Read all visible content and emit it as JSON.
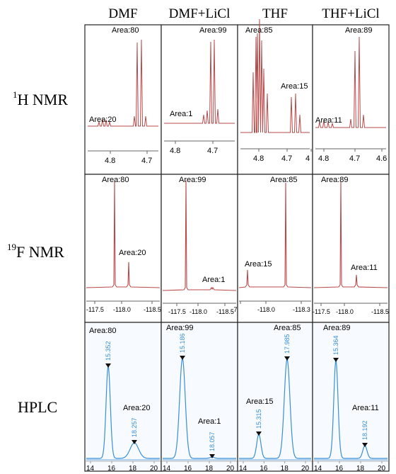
{
  "columns": [
    "DMF",
    "DMF+LiCl",
    "THF",
    "THF+LiCl"
  ],
  "rows": [
    {
      "id": "h1",
      "sup": "1",
      "label": "H NMR"
    },
    {
      "id": "f19",
      "sup": "19",
      "label": "F NMR"
    },
    {
      "id": "hplc",
      "sup": "",
      "label": "HPLC"
    }
  ],
  "colors": {
    "nmr": "#b84a4a",
    "hplc": "#3a8fd6",
    "axis": "#666666",
    "border": "#222222"
  },
  "panels": {
    "h1": [
      {
        "areas": [
          {
            "text": "Area:20"
          },
          {
            "text": "Area:80"
          }
        ],
        "ticks": [
          "4.8",
          "4.7"
        ]
      },
      {
        "areas": [
          {
            "text": "Area:1"
          },
          {
            "text": "Area:99"
          }
        ],
        "ticks": [
          "4.8",
          "4.7"
        ]
      },
      {
        "areas": [
          {
            "text": "Area:85"
          },
          {
            "text": "Area:15"
          }
        ],
        "ticks": [
          "4.8",
          "4.7",
          "4"
        ]
      },
      {
        "areas": [
          {
            "text": "Area:11"
          },
          {
            "text": "Area:89"
          }
        ],
        "ticks": [
          "4.8",
          "4.7",
          "4.6"
        ]
      }
    ],
    "f19": [
      {
        "areas": [
          {
            "text": "Area:80"
          },
          {
            "text": "Area:20"
          }
        ],
        "ticks": [
          "-117.5",
          "-118.0",
          "-118.5"
        ]
      },
      {
        "areas": [
          {
            "text": "Area:99"
          },
          {
            "text": "Area:1"
          }
        ],
        "ticks": [
          "-117.5",
          "-118.0",
          "-118.5"
        ]
      },
      {
        "areas": [
          {
            "text": "Area:15"
          },
          {
            "text": "Area:85"
          }
        ],
        "ticks": [
          ".7",
          "-118.0",
          "-118.3"
        ]
      },
      {
        "areas": [
          {
            "text": "Area:89"
          },
          {
            "text": "Area:11"
          }
        ],
        "ticks": [
          "-117.5",
          "-118.0",
          "-118.5"
        ]
      }
    ],
    "hplc": [
      {
        "areas": [
          {
            "text": "Area:80"
          },
          {
            "text": "Area:20"
          }
        ],
        "peaks": [
          "15.352",
          "18.257"
        ],
        "ticks": [
          "14",
          "16",
          "18",
          "20"
        ]
      },
      {
        "areas": [
          {
            "text": "Area:99"
          },
          {
            "text": "Area:1"
          }
        ],
        "peaks": [
          "15.186",
          "18.057"
        ],
        "ticks": [
          "14",
          "16",
          "18",
          "20"
        ]
      },
      {
        "areas": [
          {
            "text": "Area:15"
          },
          {
            "text": "Area:85"
          }
        ],
        "peaks": [
          "15.315",
          "17.985"
        ],
        "ticks": [
          "14",
          "16",
          "18",
          "20"
        ]
      },
      {
        "areas": [
          {
            "text": "Area:89"
          },
          {
            "text": "Area:11"
          }
        ],
        "peaks": [
          "15.364",
          "18.192"
        ],
        "ticks": [
          "14",
          "16",
          "18",
          "20"
        ]
      }
    ]
  }
}
